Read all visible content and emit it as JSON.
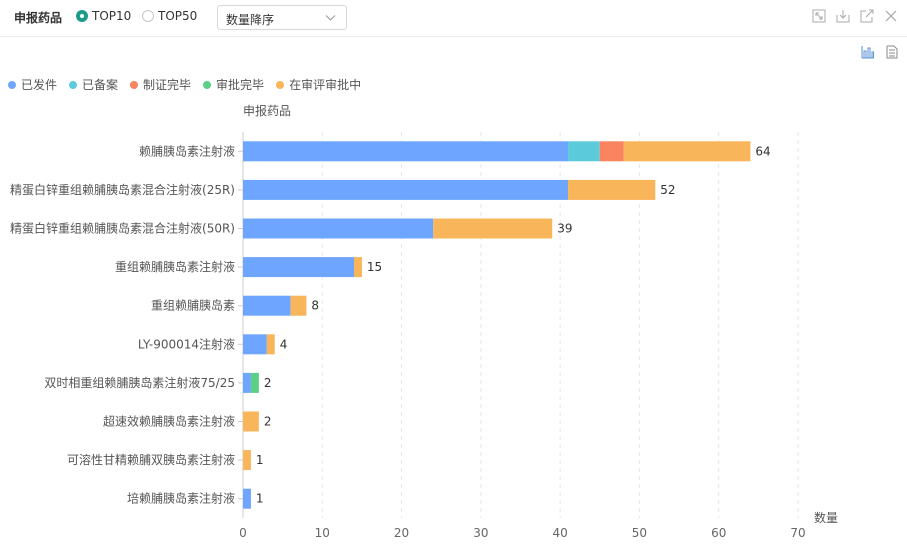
{
  "toolbar": {
    "title": "申报药品",
    "options": [
      {
        "label": "TOP10",
        "selected": true
      },
      {
        "label": "TOP50",
        "selected": false
      }
    ],
    "sort_value": "数量降序",
    "window_icons": [
      "fullscreen-icon",
      "download-icon",
      "open-external-icon",
      "close-icon"
    ],
    "tool_icons": [
      "bar-chart-icon",
      "data-view-icon"
    ]
  },
  "colors": {
    "已发件": "#6ea6ff",
    "已备案": "#5bcbdc",
    "制证完毕": "#fa8460",
    "审批完毕": "#5ccf86",
    "在审评审批中": "#f9b55a"
  },
  "chart_data": {
    "type": "bar",
    "orientation": "horizontal",
    "stacked": true,
    "ylabel": "申报药品",
    "xlabel": "数量",
    "xlim": [
      0,
      70
    ],
    "xticks": [
      0,
      10,
      20,
      30,
      40,
      50,
      60,
      70
    ],
    "grid": "vertical dashed",
    "legend_position": "top-left",
    "categories": [
      "赖脯胰岛素注射液",
      "精蛋白锌重组赖脯胰岛素混合注射液(25R)",
      "精蛋白锌重组赖脯胰岛素混合注射液(50R)",
      "重组赖脯胰岛素注射液",
      "重组赖脯胰岛素",
      "LY-900014注射液",
      "双时相重组赖脯胰岛素注射液75/25",
      "超速效赖脯胰岛素注射液",
      "可溶性甘精赖脯双胰岛素注射液",
      "培赖脯胰岛素注射液"
    ],
    "series": [
      {
        "name": "已发件",
        "values": [
          41,
          41,
          24,
          14,
          6,
          3,
          1,
          0,
          0,
          1
        ]
      },
      {
        "name": "已备案",
        "values": [
          4,
          0,
          0,
          0,
          0,
          0,
          0,
          0,
          0,
          0
        ]
      },
      {
        "name": "制证完毕",
        "values": [
          3,
          0,
          0,
          0,
          0,
          0,
          0,
          0,
          0,
          0
        ]
      },
      {
        "name": "审批完毕",
        "values": [
          0,
          0,
          0,
          0,
          0,
          0,
          1,
          0,
          0,
          0
        ]
      },
      {
        "name": "在审评审批中",
        "values": [
          16,
          11,
          15,
          1,
          2,
          1,
          0,
          2,
          1,
          0
        ]
      }
    ],
    "totals": [
      64,
      52,
      39,
      15,
      8,
      4,
      2,
      2,
      1,
      1
    ]
  }
}
